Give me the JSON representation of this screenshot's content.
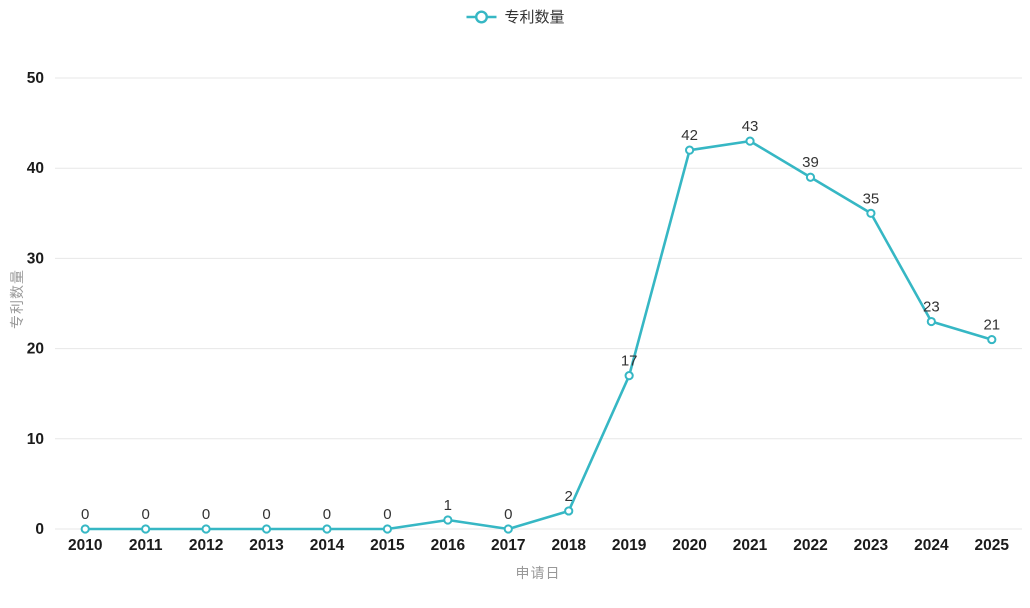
{
  "chart": {
    "legend": {
      "label": "专利数量"
    }
  },
  "colors": {
    "line": "#36b7c4",
    "marker_fill": "#ffffff",
    "grid": "#e7e7e7",
    "tick_text": "#1b1b1b",
    "data_label_text": "#333333",
    "axis_title_text": "#999999",
    "background": "#ffffff"
  },
  "chart_data": {
    "type": "line",
    "title": "",
    "categories": [
      "2010",
      "2011",
      "2012",
      "2013",
      "2014",
      "2015",
      "2016",
      "2017",
      "2018",
      "2019",
      "2020",
      "2021",
      "2022",
      "2023",
      "2024",
      "2025"
    ],
    "series": [
      {
        "name": "专利数量",
        "values": [
          0,
          0,
          0,
          0,
          0,
          0,
          1,
          0,
          2,
          17,
          42,
          43,
          39,
          35,
          23,
          21
        ]
      }
    ],
    "xlabel": "申请日",
    "ylabel": "专利数量",
    "ylim": [
      0,
      50
    ],
    "yticks": [
      0,
      10,
      20,
      30,
      40,
      50
    ],
    "grid": true,
    "legend_position": "top-center",
    "show_data_labels": true,
    "marker": "circle"
  }
}
